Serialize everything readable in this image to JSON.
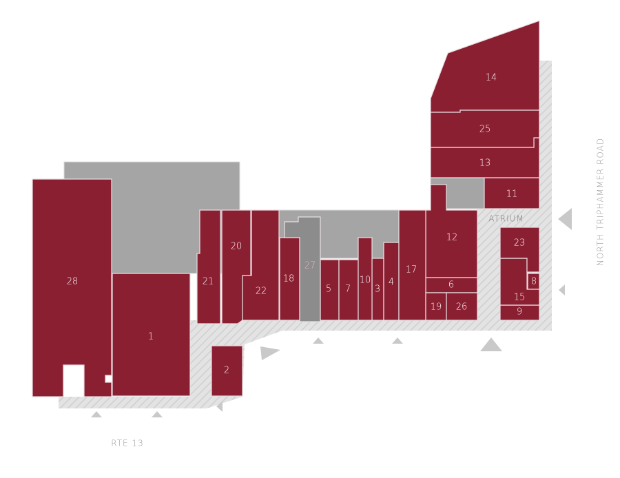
{
  "units": [
    {
      "label": "1"
    },
    {
      "label": "2"
    },
    {
      "label": "3"
    },
    {
      "label": "4"
    },
    {
      "label": "5"
    },
    {
      "label": "6"
    },
    {
      "label": "7"
    },
    {
      "label": "8"
    },
    {
      "label": "9"
    },
    {
      "label": "10"
    },
    {
      "label": "11"
    },
    {
      "label": "12"
    },
    {
      "label": "13"
    },
    {
      "label": "14"
    },
    {
      "label": "15"
    },
    {
      "label": "17"
    },
    {
      "label": "18"
    },
    {
      "label": "19"
    },
    {
      "label": "20"
    },
    {
      "label": "21"
    },
    {
      "label": "22"
    },
    {
      "label": "23"
    },
    {
      "label": "25"
    },
    {
      "label": "26"
    },
    {
      "label": "27"
    },
    {
      "label": "28"
    }
  ],
  "atrium": "ATRIUM",
  "roads": [
    "NORTH TRIPHAMMER ROAD",
    "RTE 13"
  ]
}
